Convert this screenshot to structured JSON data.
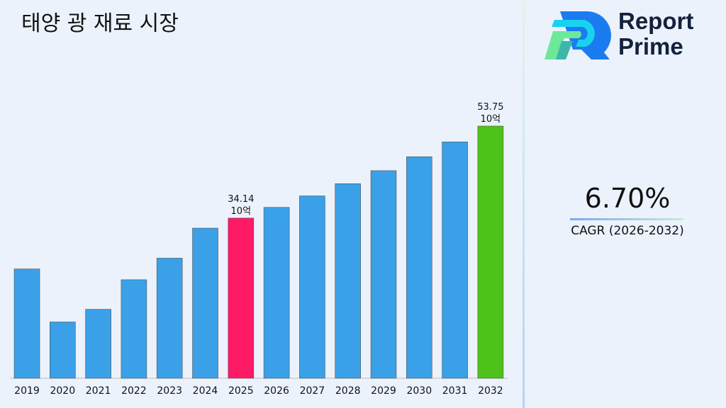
{
  "title": "태양 광 재료 시장",
  "logo": {
    "text_line1": "Report",
    "text_line2": "Prime"
  },
  "cagr": {
    "value": "6.70%",
    "label": "CAGR (2026-2032)"
  },
  "colors": {
    "default": "#3aa0e8",
    "highlight_2025": "#ff1a66",
    "highlight_2032": "#4cc21a"
  },
  "chart_data": {
    "type": "bar",
    "title": "태양 광 재료 시장",
    "categories": [
      "2019",
      "2020",
      "2021",
      "2022",
      "2023",
      "2024",
      "2025",
      "2026",
      "2027",
      "2028",
      "2029",
      "2030",
      "2031",
      "2032"
    ],
    "values": [
      23.3,
      12.0,
      14.7,
      21.0,
      25.6,
      32.0,
      34.14,
      36.43,
      38.87,
      41.47,
      44.25,
      47.22,
      50.38,
      53.75
    ],
    "data_labels": [
      {
        "category": "2025",
        "value": "34.14",
        "unit": "10억"
      },
      {
        "category": "2032",
        "value": "53.75",
        "unit": "10억"
      }
    ],
    "ylim": [
      0,
      53.75
    ],
    "grid": false
  }
}
